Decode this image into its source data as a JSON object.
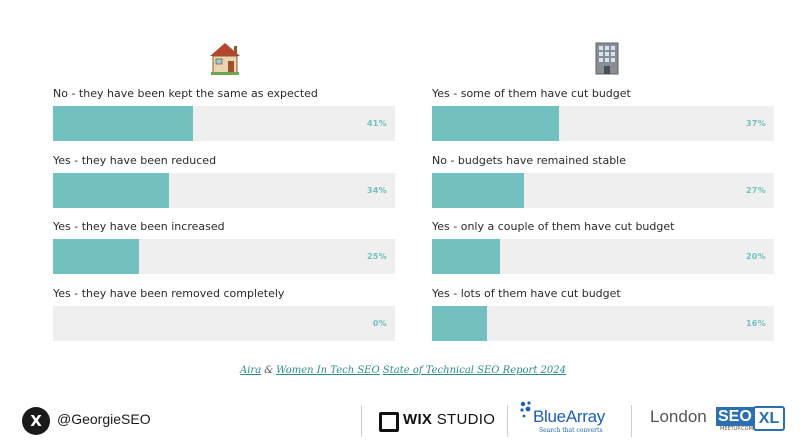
{
  "chart_data": [
    {
      "type": "bar",
      "orientation": "horizontal",
      "icon": "house-icon",
      "categories": [
        "No - they have been kept the same as expected",
        "Yes - they have been reduced",
        "Yes - they have been increased",
        "Yes - they have been removed completely"
      ],
      "values": [
        41,
        34,
        25,
        0
      ],
      "value_labels": [
        "41%",
        "34%",
        "25%",
        "0%"
      ],
      "xlim": [
        0,
        100
      ],
      "grid": false,
      "bar_color": "#72c0bf",
      "track_color": "#efefef"
    },
    {
      "type": "bar",
      "orientation": "horizontal",
      "icon": "office-building-icon",
      "categories": [
        "Yes - some of them have cut budget",
        "No - budgets have remained stable",
        "Yes - only a couple of them have cut budget",
        "Yes - lots of them have cut budget"
      ],
      "values": [
        37,
        27,
        20,
        16
      ],
      "value_labels": [
        "37%",
        "27%",
        "20%",
        "16%"
      ],
      "xlim": [
        0,
        100
      ],
      "grid": false,
      "bar_color": "#72c0bf",
      "track_color": "#efefef"
    }
  ],
  "source": {
    "link1": "Aira",
    "amp": "&",
    "link2": "Women In Tech SEO",
    "link3": "State of Technical SEO Report 2024"
  },
  "footer": {
    "x_icon": "x-logo-icon",
    "x_glyph": "X",
    "handle": "@GeorgieSEO",
    "wix": {
      "bold": "WIX",
      "thin": "STUDIO"
    },
    "bluearray": {
      "name": "BlueArray",
      "tagline": "Search that converts"
    },
    "londonseo": {
      "word": "London",
      "box": "SEO",
      "sub": "MEETUP.COM",
      "xl": "XL"
    }
  },
  "colors": {
    "accent": "#72c0bf",
    "link": "#2b8c8a",
    "brand_blue": "#1d5fb4"
  }
}
